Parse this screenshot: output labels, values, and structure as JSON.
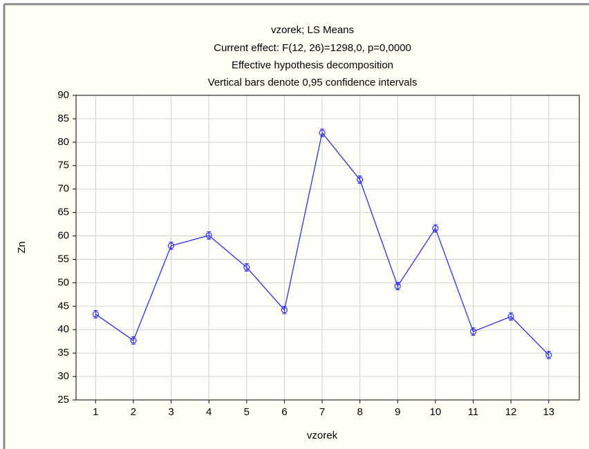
{
  "chart_data": {
    "type": "line",
    "title": "vzorek; LS Means",
    "subtitle": [
      "Current effect: F(12, 26)=1298,0, p=0,0000",
      "Effective hypothesis decomposition",
      "Vertical bars denote 0,95 confidence intervals"
    ],
    "x_label": "vzorek",
    "y_label": "Zn",
    "categories": [
      "1",
      "2",
      "3",
      "4",
      "5",
      "6",
      "7",
      "8",
      "9",
      "10",
      "11",
      "12",
      "13"
    ],
    "series": [
      {
        "name": "Zn",
        "color": "#2b2bff",
        "values": [
          43.3,
          37.7,
          57.9,
          60.1,
          53.3,
          44.2,
          82.0,
          72.0,
          49.3,
          61.6,
          39.6,
          42.8,
          34.6
        ],
        "errors": [
          0.8,
          0.8,
          0.8,
          0.8,
          0.8,
          0.8,
          0.8,
          0.8,
          0.8,
          0.8,
          0.8,
          0.8,
          0.8
        ]
      }
    ],
    "ylim": [
      25,
      90
    ],
    "yticks": [
      25,
      30,
      35,
      40,
      45,
      50,
      55,
      60,
      65,
      70,
      75,
      80,
      85,
      90
    ],
    "grid": true
  }
}
